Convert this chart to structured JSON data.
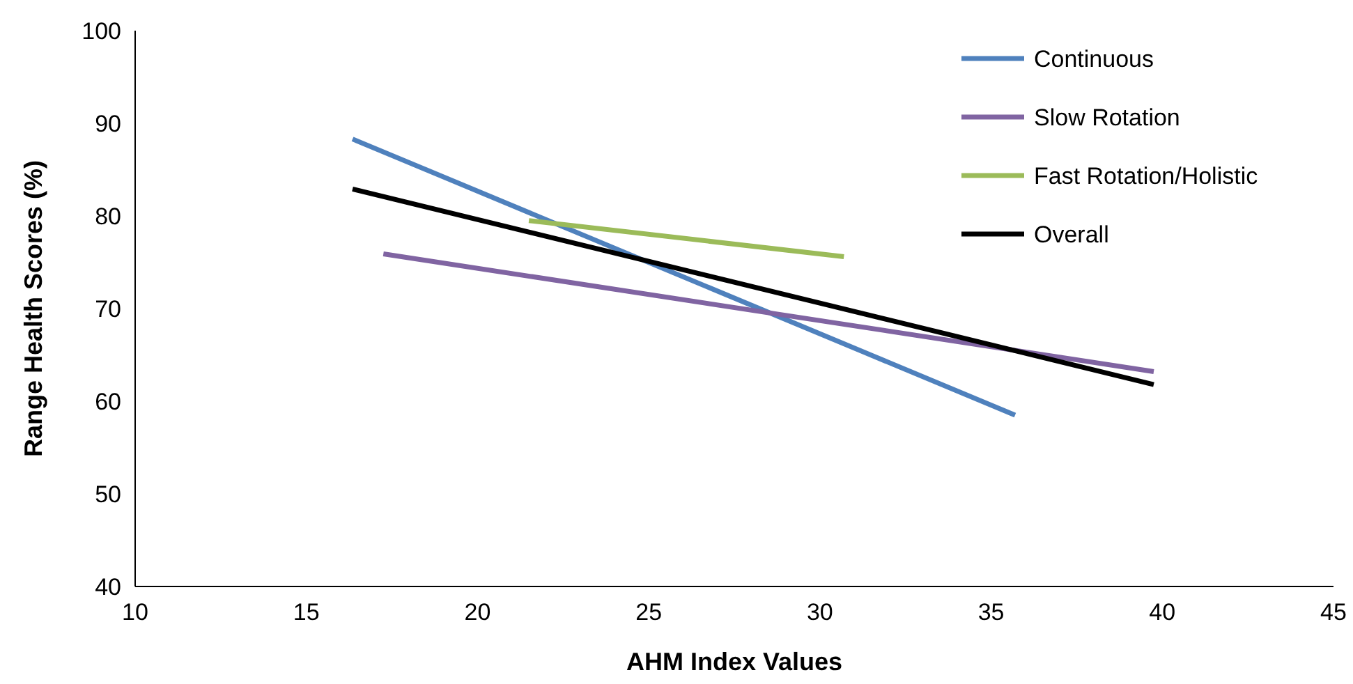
{
  "chart_data": {
    "type": "line",
    "xlabel": "AHM Index Values",
    "ylabel": "Range Health Scores (%)",
    "xlim": [
      10,
      45
    ],
    "xticks": [
      10,
      15,
      20,
      25,
      30,
      35,
      40,
      45
    ],
    "ylim": [
      40,
      100
    ],
    "yticks": [
      40,
      50,
      60,
      70,
      80,
      90,
      100
    ],
    "grid": false,
    "legend": "top right",
    "marker": "none",
    "line_style": "solid",
    "series": [
      {
        "name": "Continuous",
        "color": "#4f81bd",
        "x": [
          16.35,
          35.7
        ],
        "values": [
          88.3,
          58.5
        ]
      },
      {
        "name": "Slow Rotation",
        "color": "#8064a2",
        "x": [
          17.25,
          39.75
        ],
        "values": [
          75.9,
          63.2
        ]
      },
      {
        "name": "Fast Rotation/Holistic",
        "color": "#9bbb59",
        "x": [
          21.5,
          30.7
        ],
        "values": [
          79.5,
          75.6
        ]
      },
      {
        "name": "Overall",
        "color": "#000000",
        "x": [
          16.35,
          39.75
        ],
        "values": [
          82.9,
          61.8
        ]
      }
    ]
  }
}
